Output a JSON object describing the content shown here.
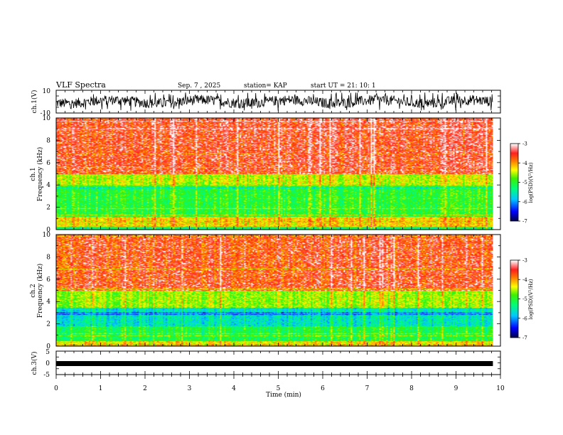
{
  "header": {
    "title": "VLF Spectra",
    "date": "Sep. 7 , 2025",
    "station": "station= KAP",
    "start_ut": "start UT =  21: 10: 1"
  },
  "colors": {
    "background": "#ffffff",
    "axis": "#000000",
    "trace": "#000000"
  },
  "chart_data": [
    {
      "type": "line",
      "name": "ch1-waveform",
      "ylabel": "ch.1(V)",
      "ylim": [
        -10,
        10
      ],
      "yticks": [
        "10",
        "-10"
      ],
      "xlim": [
        0,
        10
      ],
      "description_values": {
        "x_end_min": 9.83,
        "amplitude_range": [
          -8,
          8
        ]
      }
    },
    {
      "type": "heatmap",
      "name": "ch1-spectrogram",
      "ylabel": "ch.1",
      "ylabel2": "Frequency  (kHz)",
      "ylim": [
        0,
        10
      ],
      "yticks": [
        "0",
        "2",
        "4",
        "6",
        "8",
        "10"
      ],
      "xlim": [
        0,
        10
      ],
      "x_end": 9.83,
      "colorbar": {
        "min": -7,
        "max": -3,
        "ticks": [
          "-3",
          "-4",
          "-5",
          "-6",
          "-7"
        ],
        "label": "log(PSD)(V²/Hz)"
      },
      "bands": [
        {
          "f": [
            0,
            0.3
          ],
          "v": -5.2
        },
        {
          "f": [
            0.3,
            1.2
          ],
          "v": -4.2
        },
        {
          "f": [
            1.2,
            4.0
          ],
          "v": -5.0
        },
        {
          "f": [
            4.0,
            5.0
          ],
          "v": -4.5
        },
        {
          "f": [
            5.0,
            10.0
          ],
          "v": -3.6
        }
      ]
    },
    {
      "type": "heatmap",
      "name": "ch2-spectrogram",
      "ylabel": "ch.2",
      "ylabel2": "Frequency  (kHz)",
      "ylim": [
        0,
        10
      ],
      "yticks": [
        "0",
        "2",
        "4",
        "6",
        "8",
        "10"
      ],
      "xlim": [
        0,
        10
      ],
      "x_end": 9.83,
      "colorbar": {
        "min": -7,
        "max": -3,
        "ticks": [
          "-3",
          "-4",
          "-5",
          "-6",
          "-7"
        ],
        "label": "log(PSD)(V²/Hz)"
      },
      "bands": [
        {
          "f": [
            0,
            0.5
          ],
          "v": -4.3
        },
        {
          "f": [
            0.5,
            1.8
          ],
          "v": -5.1
        },
        {
          "f": [
            1.8,
            3.5
          ],
          "v": -5.6
        },
        {
          "f": [
            3.5,
            5.0
          ],
          "v": -4.6
        },
        {
          "f": [
            5.0,
            10.0
          ],
          "v": -3.7
        }
      ]
    },
    {
      "type": "line",
      "name": "ch3-waveform",
      "ylabel": "ch.3(V)",
      "ylim": [
        -5,
        5
      ],
      "yticks": [
        "5",
        "0",
        "-5"
      ],
      "xlim": [
        0,
        10
      ],
      "x_end": 9.83,
      "level": 0,
      "xlabel": "Time  (min)",
      "xticks": [
        "0",
        "1",
        "2",
        "3",
        "4",
        "5",
        "6",
        "7",
        "8",
        "9",
        "10"
      ]
    }
  ]
}
